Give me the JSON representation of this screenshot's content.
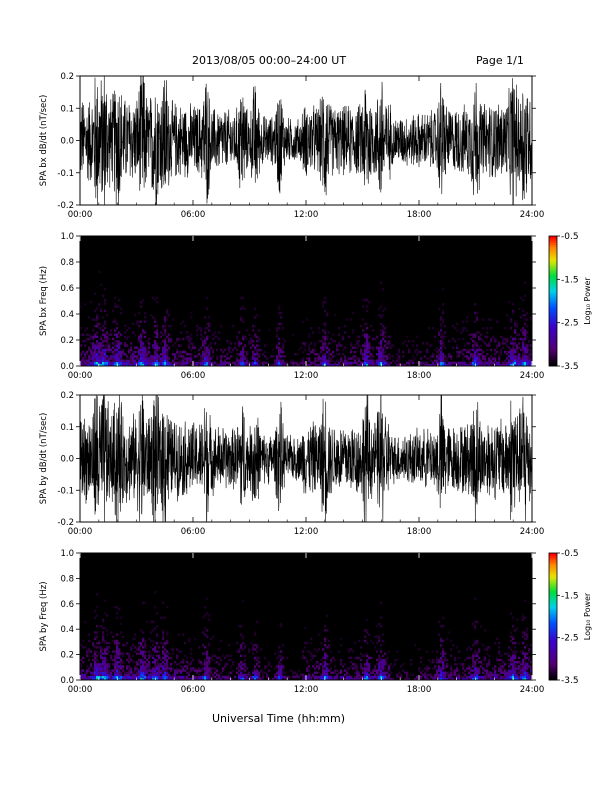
{
  "header": {
    "title": "2013/08/05  00:00–24:00 UT",
    "page": "Page 1/1"
  },
  "xaxis_label": "Universal Time (hh:mm)",
  "colorbar": {
    "label": "Log₁₀ Power",
    "ticks": [
      "-0.5",
      "-1.5",
      "-2.5",
      "-3.5"
    ]
  },
  "chart_data": [
    {
      "type": "line",
      "ylabel": "SPA bx dB/dt (nT/sec)",
      "xlim": [
        0,
        24
      ],
      "ylim": [
        -0.2,
        0.2
      ],
      "xticks": [
        "00:00",
        "06:00",
        "12:00",
        "18:00",
        "24:00"
      ],
      "yticks": [
        "-0.2",
        "-0.1",
        "0.0",
        "0.1",
        "0.2"
      ],
      "series": [
        {
          "values": []
        }
      ]
    },
    {
      "type": "heatmap",
      "ylabel": "SPA bx Freq (Hz)",
      "xlim": [
        0,
        24
      ],
      "ylim": [
        0,
        1.0
      ],
      "xticks": [
        "00:00",
        "06:00",
        "12:00",
        "18:00",
        "24:00"
      ],
      "yticks": [
        "0.0",
        "0.2",
        "0.4",
        "0.6",
        "0.8",
        "1.0"
      ],
      "zlim": [
        -3.5,
        -0.5
      ]
    },
    {
      "type": "line",
      "ylabel": "SPA by dB/dt (nT/sec)",
      "xlim": [
        0,
        24
      ],
      "ylim": [
        -0.2,
        0.2
      ],
      "xticks": [
        "00:00",
        "06:00",
        "12:00",
        "18:00",
        "24:00"
      ],
      "yticks": [
        "-0.2",
        "-0.1",
        "0.0",
        "0.1",
        "0.2"
      ],
      "series": [
        {
          "values": []
        }
      ]
    },
    {
      "type": "heatmap",
      "ylabel": "SPA by Freq (Hz)",
      "xlim": [
        0,
        24
      ],
      "ylim": [
        0,
        1.0
      ],
      "xticks": [
        "00:00",
        "06:00",
        "12:00",
        "18:00",
        "24:00"
      ],
      "yticks": [
        "0.0",
        "0.2",
        "0.4",
        "0.6",
        "0.8",
        "1.0"
      ],
      "zlim": [
        -3.5,
        -0.5
      ]
    }
  ]
}
